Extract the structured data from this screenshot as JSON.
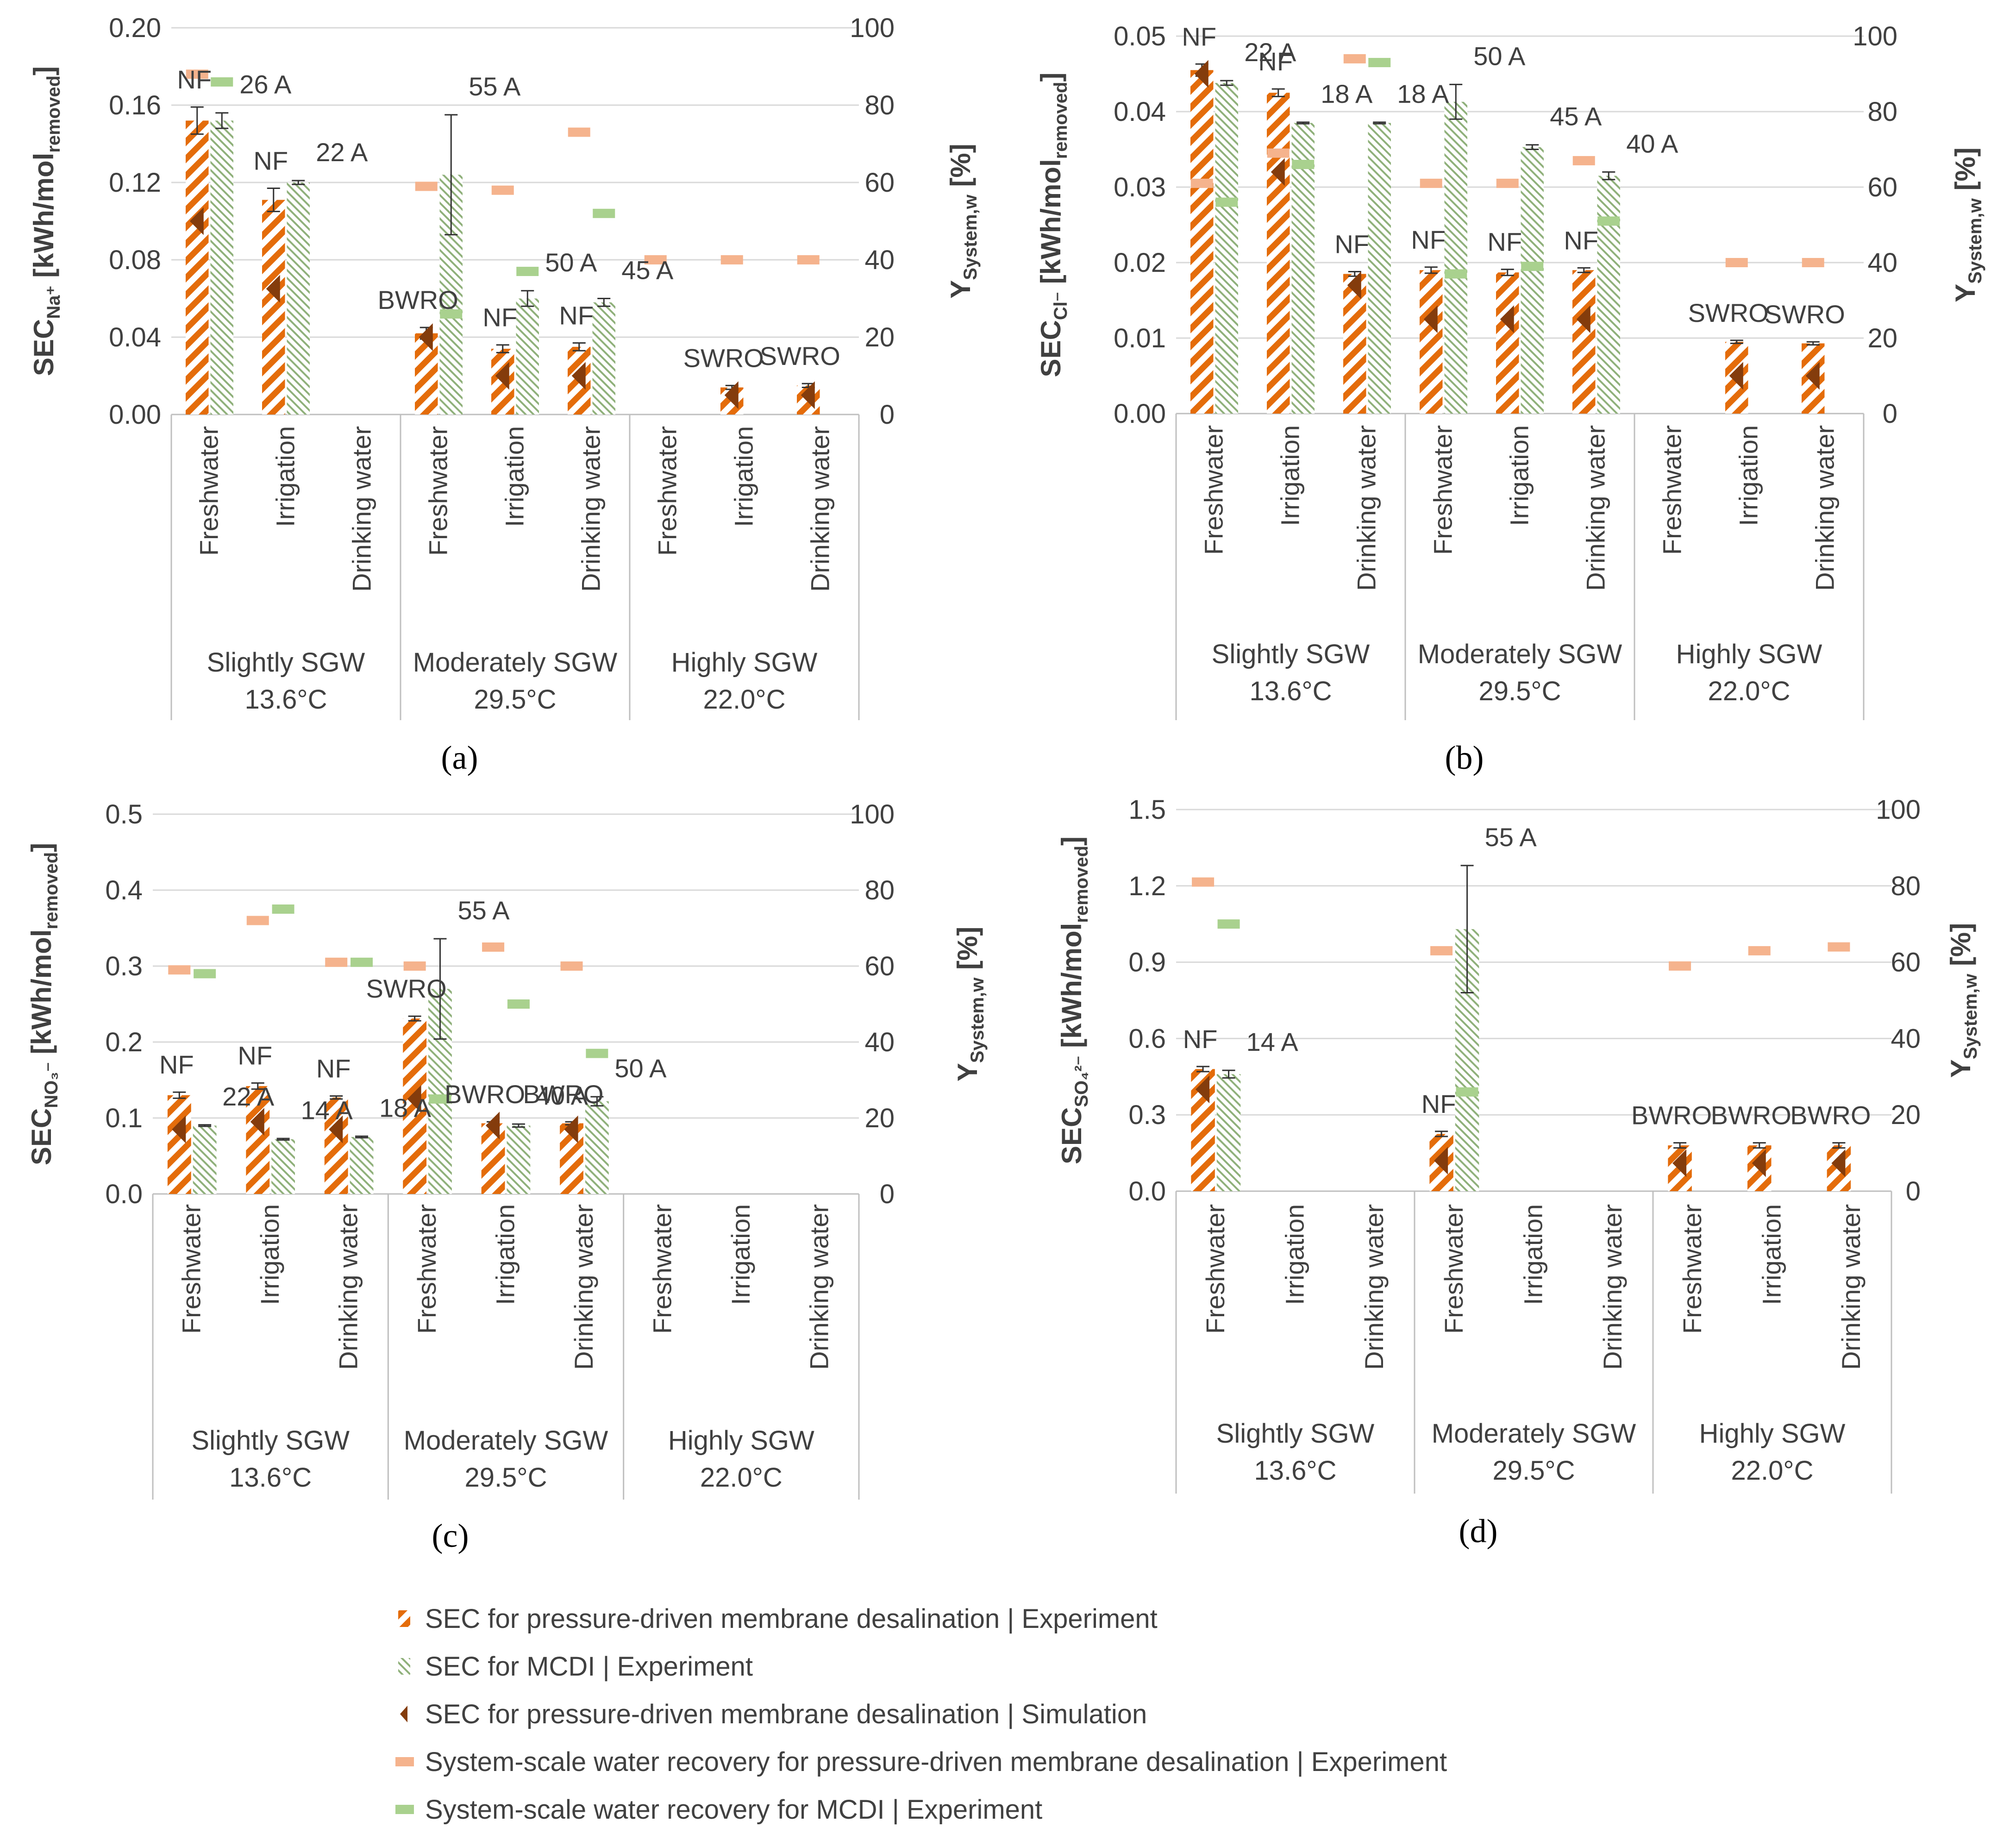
{
  "chart_data": [
    {
      "id": "a",
      "type": "bar",
      "panel_label": "(a)",
      "ylabel_left": {
        "main": "SEC",
        "sub": "Na⁺",
        "rest": " [kWh/mol",
        "sub2": "removed",
        "end": "]"
      },
      "ylabel_right": {
        "main": "Y",
        "sub": "System,w",
        "rest": " [%]"
      },
      "ylim_left": [
        0,
        0.2
      ],
      "left_ticks": [
        "0.00",
        "0.04",
        "0.08",
        "0.12",
        "0.16",
        "0.20"
      ],
      "ylim_right": [
        0,
        100
      ],
      "right_ticks": [
        "0",
        "20",
        "40",
        "60",
        "80",
        "100"
      ],
      "categories": [
        "Freshwater",
        "Irrigation",
        "Drinking water",
        "Freshwater",
        "Irrigation",
        "Drinking water",
        "Freshwater",
        "Irrigation",
        "Drinking water"
      ],
      "groups": [
        {
          "name": "Slightly SGW",
          "temp": "13.6°C"
        },
        {
          "name": "Moderately SGW",
          "temp": "29.5°C"
        },
        {
          "name": "Highly SGW",
          "temp": "22.0°C"
        }
      ],
      "series": [
        {
          "name": "SEC for pressure-driven membrane desalination | Experiment",
          "values": [
            0.152,
            0.111,
            null,
            0.042,
            0.034,
            0.035,
            null,
            0.014,
            0.015
          ],
          "errors": [
            0.007,
            0.006,
            null,
            0.003,
            0.002,
            0.002,
            null,
            0.001,
            0.001
          ]
        },
        {
          "name": "SEC for MCDI | Experiment",
          "values": [
            0.152,
            0.12,
            null,
            0.124,
            0.06,
            0.058,
            null,
            null,
            null
          ],
          "errors": [
            0.004,
            0.001,
            null,
            0.031,
            0.004,
            0.002,
            null,
            null,
            null
          ]
        },
        {
          "name": "SEC for pressure-driven membrane desalination | Simulation",
          "values": [
            0.1,
            0.065,
            null,
            0.04,
            0.02,
            0.02,
            null,
            0.01,
            0.01
          ]
        },
        {
          "name": "System-scale water recovery for pressure-driven membrane desalination | Experiment",
          "values": [
            88,
            null,
            null,
            59,
            58,
            73,
            40,
            40,
            40
          ]
        },
        {
          "name": "System-scale water recovery for MCDI | Experiment",
          "values": [
            86,
            null,
            null,
            26,
            37,
            52,
            null,
            null,
            null
          ]
        }
      ],
      "annotations": [
        {
          "label": "NF",
          "cat": 0,
          "series": 0
        },
        {
          "label": "26 A",
          "cat": 0,
          "series": 1
        },
        {
          "label": "NF",
          "cat": 1,
          "series": 0
        },
        {
          "label": "22 A",
          "cat": 1,
          "series": 1
        },
        {
          "label": "BWRO",
          "cat": 3,
          "series": 0
        },
        {
          "label": "55 A",
          "cat": 3,
          "series": 1
        },
        {
          "label": "NF",
          "cat": 4,
          "series": 0
        },
        {
          "label": "50 A",
          "cat": 4,
          "series": 1
        },
        {
          "label": "NF",
          "cat": 5,
          "series": 0
        },
        {
          "label": "45 A",
          "cat": 5,
          "series": 1
        },
        {
          "label": "SWRO",
          "cat": 7,
          "series": 0
        },
        {
          "label": "SWRO",
          "cat": 8,
          "series": 0
        }
      ]
    },
    {
      "id": "b",
      "type": "bar",
      "panel_label": "(b)",
      "ylabel_left": {
        "main": "SEC",
        "sub": "Cl⁻",
        "rest": " [kWh/mol",
        "sub2": "removed",
        "end": "]"
      },
      "ylabel_right": {
        "main": "Y",
        "sub": "System,w",
        "rest": " [%]"
      },
      "ylim_left": [
        0,
        0.05
      ],
      "left_ticks": [
        "0.00",
        "0.01",
        "0.02",
        "0.03",
        "0.04",
        "0.05"
      ],
      "ylim_right": [
        0,
        100
      ],
      "right_ticks": [
        "0",
        "20",
        "40",
        "60",
        "80",
        "100"
      ],
      "categories": [
        "Freshwater",
        "Irrigation",
        "Drinking water",
        "Freshwater",
        "Irrigation",
        "Drinking water",
        "Freshwater",
        "Irrigation",
        "Drinking water"
      ],
      "groups": [
        {
          "name": "Slightly SGW",
          "temp": "13.6°C"
        },
        {
          "name": "Moderately SGW",
          "temp": "29.5°C"
        },
        {
          "name": "Highly SGW",
          "temp": "22.0°C"
        }
      ],
      "series": [
        {
          "name": "SEC for pressure-driven membrane desalination | Experiment",
          "values": [
            0.0455,
            0.0425,
            0.0185,
            0.019,
            0.0187,
            0.019,
            null,
            0.0095,
            0.0093
          ],
          "errors": [
            0.0008,
            0.0005,
            0.0003,
            0.0004,
            0.0004,
            0.0003,
            null,
            0.0002,
            0.0002
          ]
        },
        {
          "name": "SEC for MCDI | Experiment",
          "values": [
            0.0438,
            0.0385,
            0.0385,
            0.0413,
            0.0353,
            0.0315,
            null,
            null,
            null
          ],
          "errors": [
            0.0003,
            0.0001,
            0.0001,
            0.0023,
            0.0003,
            0.0005,
            null,
            null,
            null
          ]
        },
        {
          "name": "SEC for pressure-driven membrane desalination | Simulation",
          "values": [
            0.045,
            0.032,
            0.017,
            0.0125,
            0.0125,
            0.0125,
            null,
            0.005,
            0.005
          ]
        },
        {
          "name": "System-scale water recovery for pressure-driven membrane desalination | Experiment",
          "values": [
            61,
            69,
            94,
            61,
            61,
            67,
            null,
            40,
            40
          ]
        },
        {
          "name": "System-scale water recovery for MCDI | Experiment",
          "values": [
            56,
            66,
            93,
            37,
            39,
            51,
            null,
            null,
            null
          ]
        }
      ],
      "annotations": [
        {
          "label": "NF",
          "cat": 0,
          "series": 0
        },
        {
          "label": "22 A",
          "cat": 0,
          "series": 1
        },
        {
          "label": "NF",
          "cat": 1,
          "series": 0
        },
        {
          "label": "18 A",
          "cat": 1,
          "series": 1
        },
        {
          "label": "NF",
          "cat": 2,
          "series": 0
        },
        {
          "label": "18 A",
          "cat": 2,
          "series": 1
        },
        {
          "label": "NF",
          "cat": 3,
          "series": 0
        },
        {
          "label": "50 A",
          "cat": 3,
          "series": 1
        },
        {
          "label": "NF",
          "cat": 4,
          "series": 0
        },
        {
          "label": "45 A",
          "cat": 4,
          "series": 1
        },
        {
          "label": "NF",
          "cat": 5,
          "series": 0
        },
        {
          "label": "40 A",
          "cat": 5,
          "series": 1
        },
        {
          "label": "SWRO",
          "cat": 7,
          "series": 0
        },
        {
          "label": "SWRO",
          "cat": 8,
          "series": 0
        }
      ]
    },
    {
      "id": "c",
      "type": "bar",
      "panel_label": "(c)",
      "ylabel_left": {
        "main": "SEC",
        "sub": "NO₃⁻",
        "rest": " [kWh/mol",
        "sub2": "removed",
        "end": "]"
      },
      "ylabel_right": {
        "main": "Y",
        "sub": "System,w",
        "rest": " [%]"
      },
      "ylim_left": [
        0,
        0.5
      ],
      "left_ticks": [
        "0.0",
        "0.1",
        "0.2",
        "0.3",
        "0.4",
        "0.5"
      ],
      "ylim_right": [
        0,
        100
      ],
      "right_ticks": [
        "0",
        "20",
        "40",
        "60",
        "80",
        "100"
      ],
      "categories": [
        "Freshwater",
        "Irrigation",
        "Drinking water",
        "Freshwater",
        "Irrigation",
        "Drinking water",
        "Freshwater",
        "Irrigation",
        "Drinking water"
      ],
      "groups": [
        {
          "name": "Slightly SGW",
          "temp": "13.6°C"
        },
        {
          "name": "Moderately SGW",
          "temp": "29.5°C"
        },
        {
          "name": "Highly SGW",
          "temp": "22.0°C"
        }
      ],
      "series": [
        {
          "name": "SEC for pressure-driven membrane desalination | Experiment",
          "values": [
            0.13,
            0.142,
            0.127,
            0.231,
            0.093,
            0.093,
            null,
            null,
            null
          ],
          "errors": [
            0.004,
            0.004,
            0.002,
            0.003,
            0.002,
            0.002,
            null,
            null,
            null
          ]
        },
        {
          "name": "SEC for MCDI | Experiment",
          "values": [
            0.09,
            0.072,
            0.075,
            0.27,
            0.09,
            0.122,
            null,
            null,
            null
          ],
          "errors": [
            0.001,
            0.001,
            0.001,
            0.066,
            0.002,
            0.006,
            null,
            null,
            null
          ]
        },
        {
          "name": "SEC for pressure-driven membrane desalination | Simulation",
          "values": [
            0.085,
            0.095,
            0.085,
            0.125,
            0.09,
            0.085,
            null,
            null,
            null
          ]
        },
        {
          "name": "System-scale water recovery for pressure-driven membrane desalination | Experiment",
          "values": [
            59,
            72,
            61,
            60,
            65,
            60,
            null,
            null,
            null
          ]
        },
        {
          "name": "System-scale water recovery for MCDI | Experiment",
          "values": [
            58,
            75,
            61,
            25,
            50,
            37,
            null,
            null,
            null
          ]
        }
      ],
      "annotations": [
        {
          "label": "NF",
          "cat": 0,
          "series": 0
        },
        {
          "label": "22 A",
          "cat": 0,
          "series": 1
        },
        {
          "label": "NF",
          "cat": 1,
          "series": 0
        },
        {
          "label": "14 A",
          "cat": 1,
          "series": 1
        },
        {
          "label": "NF",
          "cat": 2,
          "series": 0
        },
        {
          "label": "18 A",
          "cat": 2,
          "series": 1
        },
        {
          "label": "SWRO",
          "cat": 3,
          "series": 0
        },
        {
          "label": "55 A",
          "cat": 3,
          "series": 1
        },
        {
          "label": "BWRO",
          "cat": 4,
          "series": 0
        },
        {
          "label": "40 A",
          "cat": 4,
          "series": 1
        },
        {
          "label": "BWRO",
          "cat": 5,
          "series": 0
        },
        {
          "label": "50 A",
          "cat": 5,
          "series": 1
        }
      ]
    },
    {
      "id": "d",
      "type": "bar",
      "panel_label": "(d)",
      "ylabel_left": {
        "main": "SEC",
        "sub": "SO₄²⁻",
        "rest": " [kWh/mol",
        "sub2": "removed",
        "end": "]"
      },
      "ylabel_right": {
        "main": "Y",
        "sub": "System,w",
        "rest": " [%]"
      },
      "ylim_left": [
        0,
        1.5
      ],
      "left_ticks": [
        "0.0",
        "0.3",
        "0.6",
        "0.9",
        "1.2",
        "1.5"
      ],
      "ylim_right": [
        0,
        100
      ],
      "right_ticks": [
        "0",
        "20",
        "40",
        "60",
        "80",
        "100"
      ],
      "categories": [
        "Freshwater",
        "Irrigation",
        "Drinking water",
        "Freshwater",
        "Irrigation",
        "Drinking water",
        "Freshwater",
        "Irrigation",
        "Drinking water"
      ],
      "groups": [
        {
          "name": "Slightly SGW",
          "temp": "13.6°C"
        },
        {
          "name": "Moderately SGW",
          "temp": "29.5°C"
        },
        {
          "name": "Highly SGW",
          "temp": "22.0°C"
        }
      ],
      "series": [
        {
          "name": "SEC for pressure-driven membrane desalination | Experiment",
          "values": [
            0.48,
            null,
            null,
            0.225,
            null,
            null,
            0.18,
            0.18,
            0.18
          ],
          "errors": [
            0.01,
            null,
            null,
            0.01,
            null,
            null,
            0.01,
            0.01,
            0.01
          ]
        },
        {
          "name": "SEC for MCDI | Experiment",
          "values": [
            0.46,
            null,
            null,
            1.03,
            null,
            null,
            null,
            null,
            null
          ],
          "errors": [
            0.015,
            null,
            null,
            0.25,
            null,
            null,
            null,
            null,
            null
          ]
        },
        {
          "name": "SEC for pressure-driven membrane desalination | Simulation",
          "values": [
            0.4,
            null,
            null,
            0.12,
            null,
            null,
            0.11,
            0.11,
            0.11
          ]
        },
        {
          "name": "System-scale water recovery for pressure-driven membrane desalination | Experiment",
          "values": [
            81,
            null,
            null,
            63,
            null,
            null,
            59,
            63,
            64
          ]
        },
        {
          "name": "System-scale water recovery for MCDI | Experiment",
          "values": [
            70,
            null,
            null,
            26,
            null,
            null,
            null,
            null,
            null
          ]
        }
      ],
      "annotations": [
        {
          "label": "NF",
          "cat": 0,
          "series": 0
        },
        {
          "label": "14 A",
          "cat": 0,
          "series": 1
        },
        {
          "label": "NF",
          "cat": 3,
          "series": 0
        },
        {
          "label": "55 A",
          "cat": 3,
          "series": 1
        },
        {
          "label": "BWRO",
          "cat": 6,
          "series": 0
        },
        {
          "label": "BWRO",
          "cat": 7,
          "series": 0
        },
        {
          "label": "BWRO",
          "cat": 8,
          "series": 0
        }
      ]
    }
  ],
  "legend": [
    {
      "key": "pressure-exp",
      "label": "SEC for pressure-driven membrane desalination | Experiment"
    },
    {
      "key": "mcdi-exp",
      "label": "SEC for MCDI | Experiment"
    },
    {
      "key": "pressure-sim",
      "label": "SEC for pressure-driven membrane desalination | Simulation"
    },
    {
      "key": "recovery-pressure",
      "label": "System-scale water recovery for pressure-driven membrane desalination | Experiment"
    },
    {
      "key": "recovery-mcdi",
      "label": "System-scale water recovery for MCDI | Experiment"
    }
  ],
  "colors": {
    "orange": "#E46C0A",
    "green": "#8FB07A",
    "brown": "#843C0C",
    "recovery_orange": "#F5B38D",
    "recovery_green": "#A9D18E",
    "axis": "#BFBFBF",
    "grid": "#D9D9D9",
    "text": "#404040"
  }
}
